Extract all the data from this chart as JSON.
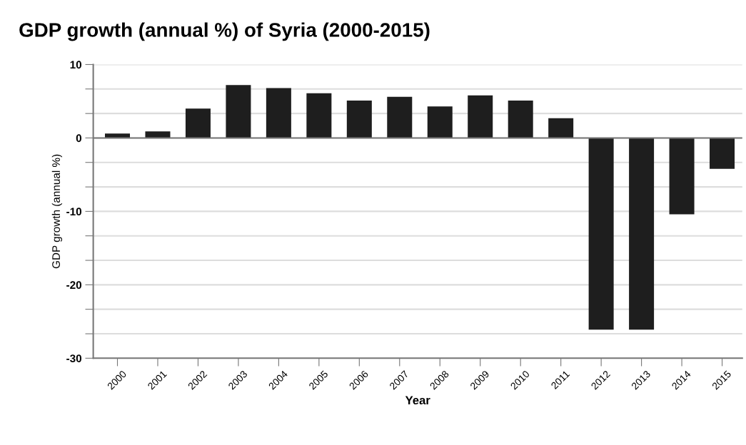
{
  "chart_data": {
    "type": "bar",
    "title": "GDP growth (annual %) of Syria (2000-2015)",
    "xlabel": "Year",
    "ylabel": "GDP growth (annual %)",
    "categories": [
      "2000",
      "2001",
      "2002",
      "2003",
      "2004",
      "2005",
      "2006",
      "2007",
      "2008",
      "2009",
      "2010",
      "2011",
      "2012",
      "2013",
      "2014",
      "2015"
    ],
    "values": [
      0.6,
      0.9,
      4.0,
      7.2,
      6.8,
      6.1,
      5.1,
      5.6,
      4.3,
      5.8,
      5.1,
      2.7,
      -26.1,
      -26.1,
      -10.4,
      -4.2
    ],
    "color": "#1e1e1e",
    "ylim": [
      -30,
      10
    ],
    "yticks": [
      -30,
      {
        "value": -26.67,
        "label": null
      },
      {
        "value": -23.33,
        "label": null
      },
      -20,
      {
        "value": -16.67,
        "label": null
      },
      {
        "value": -13.33,
        "label": null
      },
      -10,
      {
        "value": -6.67,
        "label": null
      },
      {
        "value": -3.33,
        "label": null
      },
      0,
      {
        "value": 3.33,
        "label": null
      },
      {
        "value": 6.67,
        "label": null
      },
      10
    ],
    "grid": "y",
    "legend": false
  }
}
